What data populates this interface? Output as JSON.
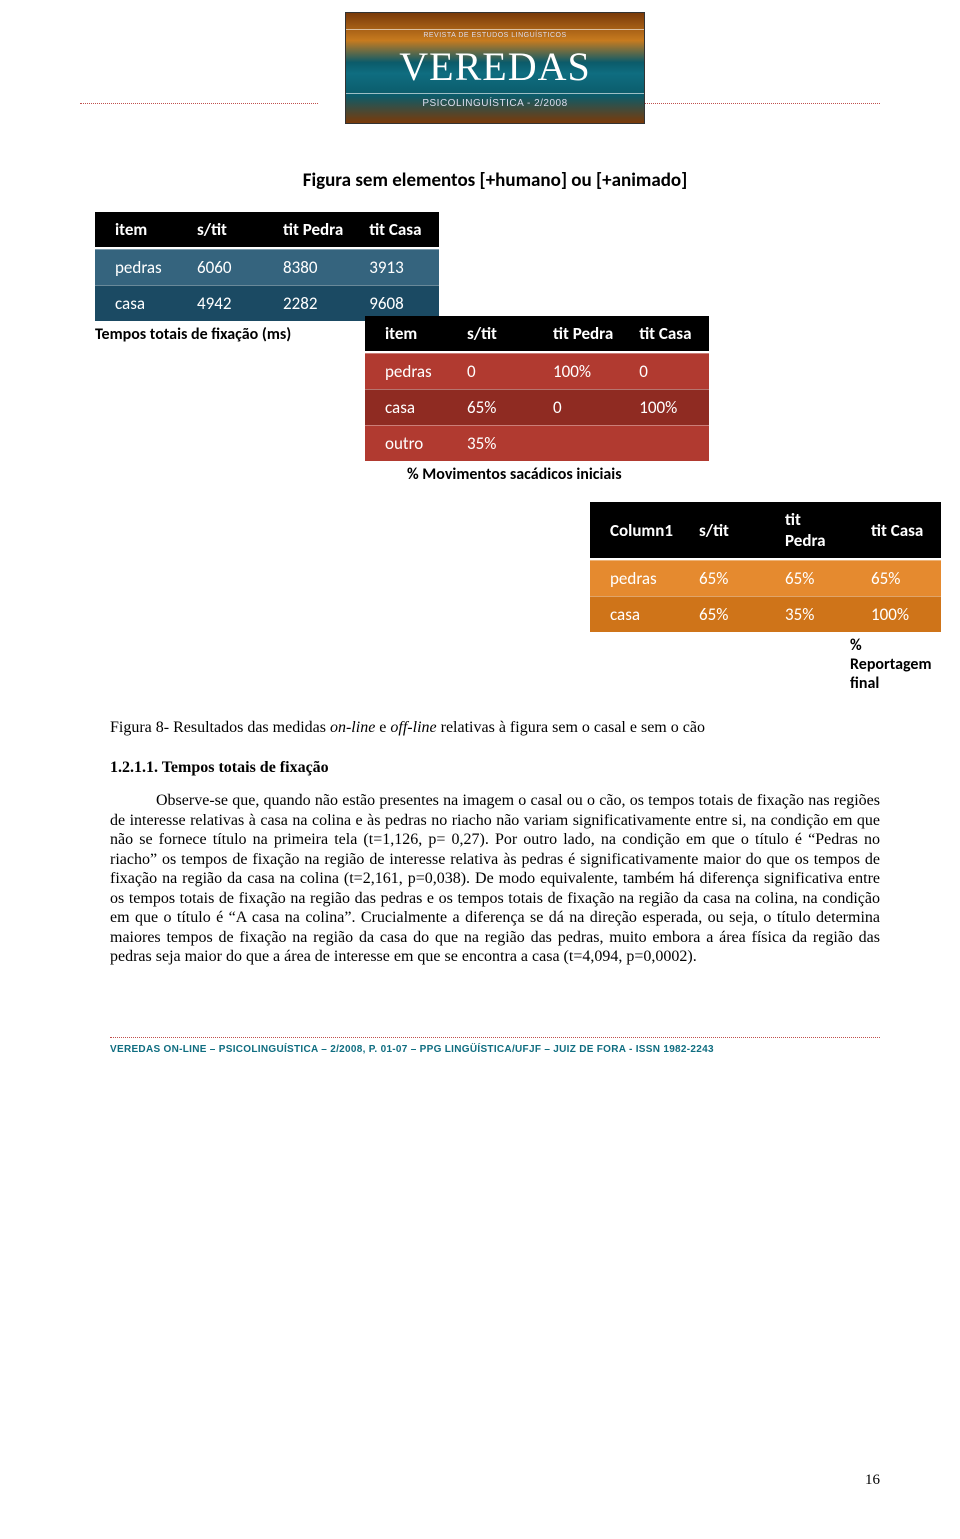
{
  "header": {
    "rev_line": "REVISTA DE ESTUDOS LINGUÍSTICOS",
    "brand": "VEREDAS",
    "sub": "PSICOLINGUÍSTICA - 2/2008",
    "rule_color": "#c0504d"
  },
  "figure": {
    "title": "Figura sem elementos [+humano] ou [+animado]"
  },
  "table1": {
    "type": "table",
    "font_family": "Calibri",
    "header_bg": "#000000",
    "header_fg": "#ffffff",
    "row_colors": [
      "#35647e",
      "#1b4a63"
    ],
    "columns": [
      "item",
      "s/tit",
      "tit Pedra",
      "tit Casa"
    ],
    "rows": [
      [
        "pedras",
        "6060",
        "8380",
        "3913"
      ],
      [
        "casa",
        "4942",
        "2282",
        "9608"
      ]
    ],
    "caption": "Tempos totais de fixação (ms)"
  },
  "table2": {
    "type": "table",
    "font_family": "Calibri",
    "header_bg": "#000000",
    "header_fg": "#ffffff",
    "row_colors": [
      "#b13a30",
      "#8f2b22",
      "#b13a30"
    ],
    "columns": [
      "item",
      "s/tit",
      "tit Pedra",
      "tit Casa"
    ],
    "rows": [
      [
        "pedras",
        "0",
        "100%",
        "0"
      ],
      [
        "casa",
        "65%",
        "0",
        "100%"
      ],
      [
        "outro",
        "35%",
        "",
        ""
      ]
    ],
    "caption": "% Movimentos sacádicos iniciais"
  },
  "table3": {
    "type": "table",
    "font_family": "Calibri",
    "header_bg": "#000000",
    "header_fg": "#ffffff",
    "row_colors": [
      "#e58a2f",
      "#cf7419"
    ],
    "columns": [
      "Column1",
      "s/tit",
      "tit Pedra",
      "tit Casa"
    ],
    "rows": [
      [
        "pedras",
        "65%",
        "65%",
        "65%"
      ],
      [
        "casa",
        "65%",
        "35%",
        "100%"
      ]
    ],
    "caption": "% Reportagem final"
  },
  "fig_caption": {
    "prefix": "Figura 8- Resultados das medidas ",
    "ital1": "on-line",
    "mid": " e ",
    "ital2": "off-line",
    "suffix": " relativas à figura sem o casal e sem o cão"
  },
  "section_heading": "1.2.1.1. Tempos totais de fixação",
  "body_paragraph": "Observe-se que, quando não estão presentes na imagem o casal ou o cão, os tempos totais de fixação nas regiões de interesse relativas à casa na colina e às pedras no riacho não variam significativamente entre si, na condição em que não se fornece título na primeira tela (t=1,126, p= 0,27). Por outro lado, na condição em que o título é “Pedras no riacho” os tempos de fixação na região de interesse relativa às pedras é significativamente maior do que os tempos de fixação na região da casa na colina (t=2,161, p=0,038). De modo equivalente, também há diferença significativa entre os tempos totais de fixação na região das pedras e os tempos totais de fixação na região da casa na colina, na condição em que o título é “A casa na colina”. Crucialmente a diferença se dá na direção esperada, ou seja, o título determina maiores tempos de fixação na região da casa do que na região das pedras, muito embora a área física da região das pedras seja maior do que a área de interesse em que se encontra a casa (t=4,094, p=0,0002).",
  "footer": {
    "line": "VEREDAS ON-LINE – PSICOLINGUÍSTICA – 2/2008, P. 01-07 – PPG LINGÜÍSTICA/UFJF – JUIZ DE FORA - ISSN 1982-2243",
    "page_number": "16",
    "color": "#0f6d80"
  }
}
